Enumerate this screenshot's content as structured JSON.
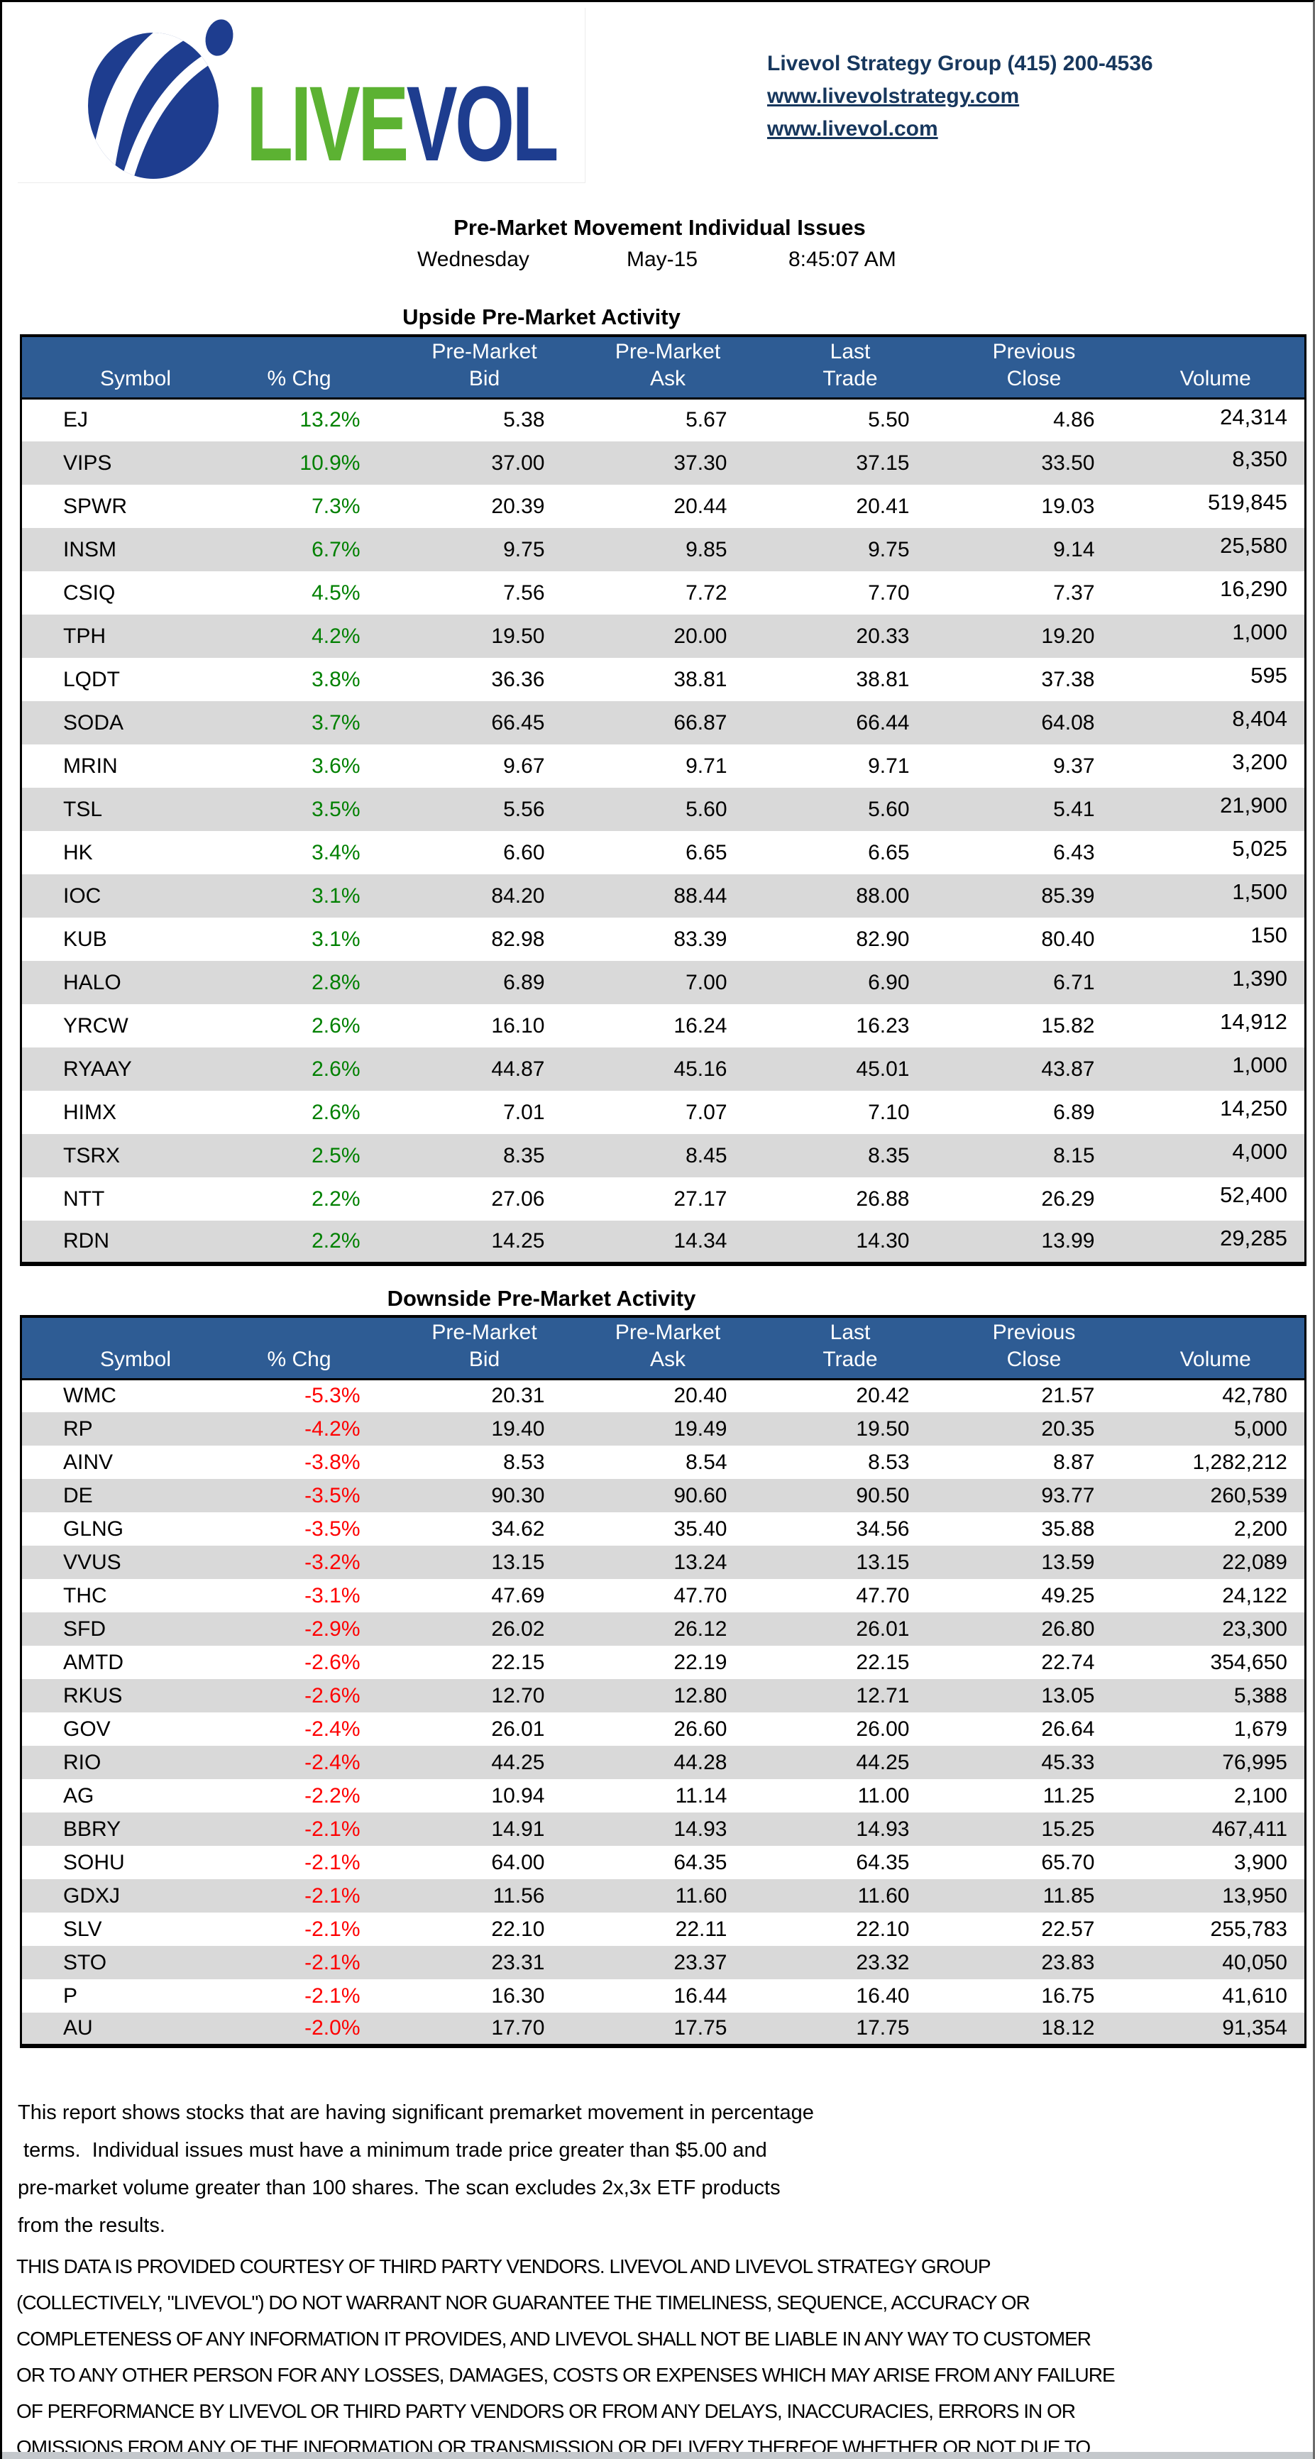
{
  "colors": {
    "header-blue": "#2e5c94",
    "row-alt": "#d9d9d9",
    "up-green": "#008000",
    "down-red": "#fe0000",
    "navy": "#17375d",
    "logo-green": "#5cb232",
    "logo-navy": "#1e3d8f"
  },
  "meta": {
    "col_keys": [
      "symbol",
      "pct-chg",
      "premarket-bid",
      "premarket-ask",
      "last-trade",
      "prev-close",
      "volume"
    ]
  },
  "header": {
    "logo": {
      "live": "LIVE",
      "vol": "VOL"
    },
    "contact": {
      "line1": "Livevol Strategy Group (415) 200-4536",
      "link1": "www.livevolstrategy.com",
      "link2": "www.livevol.com"
    },
    "title": "Pre-Market Movement Individual Issues",
    "weekday": "Wednesday",
    "date": "May-15",
    "time": "8:45:07 AM"
  },
  "table_columns": [
    {
      "top": "",
      "bottom": "Symbol"
    },
    {
      "top": "",
      "bottom": "% Chg"
    },
    {
      "top": "Pre-Market",
      "bottom": "Bid"
    },
    {
      "top": "Pre-Market",
      "bottom": "Ask"
    },
    {
      "top": "Last",
      "bottom": "Trade"
    },
    {
      "top": "Previous",
      "bottom": "Close"
    },
    {
      "top": "",
      "bottom": "Volume"
    }
  ],
  "upside": {
    "heading": "Upside Pre-Market Activity",
    "rows": [
      [
        "EJ",
        "13.2%",
        "5.38",
        "5.67",
        "5.50",
        "4.86",
        "24,314"
      ],
      [
        "VIPS",
        "10.9%",
        "37.00",
        "37.30",
        "37.15",
        "33.50",
        "8,350"
      ],
      [
        "SPWR",
        "7.3%",
        "20.39",
        "20.44",
        "20.41",
        "19.03",
        "519,845"
      ],
      [
        "INSM",
        "6.7%",
        "9.75",
        "9.85",
        "9.75",
        "9.14",
        "25,580"
      ],
      [
        "CSIQ",
        "4.5%",
        "7.56",
        "7.72",
        "7.70",
        "7.37",
        "16,290"
      ],
      [
        "TPH",
        "4.2%",
        "19.50",
        "20.00",
        "20.33",
        "19.20",
        "1,000"
      ],
      [
        "LQDT",
        "3.8%",
        "36.36",
        "38.81",
        "38.81",
        "37.38",
        "595"
      ],
      [
        "SODA",
        "3.7%",
        "66.45",
        "66.87",
        "66.44",
        "64.08",
        "8,404"
      ],
      [
        "MRIN",
        "3.6%",
        "9.67",
        "9.71",
        "9.71",
        "9.37",
        "3,200"
      ],
      [
        "TSL",
        "3.5%",
        "5.56",
        "5.60",
        "5.60",
        "5.41",
        "21,900"
      ],
      [
        "HK",
        "3.4%",
        "6.60",
        "6.65",
        "6.65",
        "6.43",
        "5,025"
      ],
      [
        "IOC",
        "3.1%",
        "84.20",
        "88.44",
        "88.00",
        "85.39",
        "1,500"
      ],
      [
        "KUB",
        "3.1%",
        "82.98",
        "83.39",
        "82.90",
        "80.40",
        "150"
      ],
      [
        "HALO",
        "2.8%",
        "6.89",
        "7.00",
        "6.90",
        "6.71",
        "1,390"
      ],
      [
        "YRCW",
        "2.6%",
        "16.10",
        "16.24",
        "16.23",
        "15.82",
        "14,912"
      ],
      [
        "RYAAY",
        "2.6%",
        "44.87",
        "45.16",
        "45.01",
        "43.87",
        "1,000"
      ],
      [
        "HIMX",
        "2.6%",
        "7.01",
        "7.07",
        "7.10",
        "6.89",
        "14,250"
      ],
      [
        "TSRX",
        "2.5%",
        "8.35",
        "8.45",
        "8.35",
        "8.15",
        "4,000"
      ],
      [
        "NTT",
        "2.2%",
        "27.06",
        "27.17",
        "26.88",
        "26.29",
        "52,400"
      ],
      [
        "RDN",
        "2.2%",
        "14.25",
        "14.34",
        "14.30",
        "13.99",
        "29,285"
      ]
    ]
  },
  "downside": {
    "heading": "Downside Pre-Market Activity",
    "rows": [
      [
        "WMC",
        "-5.3%",
        "20.31",
        "20.40",
        "20.42",
        "21.57",
        "42,780"
      ],
      [
        "RP",
        "-4.2%",
        "19.40",
        "19.49",
        "19.50",
        "20.35",
        "5,000"
      ],
      [
        "AINV",
        "-3.8%",
        "8.53",
        "8.54",
        "8.53",
        "8.87",
        "1,282,212"
      ],
      [
        "DE",
        "-3.5%",
        "90.30",
        "90.60",
        "90.50",
        "93.77",
        "260,539"
      ],
      [
        "GLNG",
        "-3.5%",
        "34.62",
        "35.40",
        "34.56",
        "35.88",
        "2,200"
      ],
      [
        "VVUS",
        "-3.2%",
        "13.15",
        "13.24",
        "13.15",
        "13.59",
        "22,089"
      ],
      [
        "THC",
        "-3.1%",
        "47.69",
        "47.70",
        "47.70",
        "49.25",
        "24,122"
      ],
      [
        "SFD",
        "-2.9%",
        "26.02",
        "26.12",
        "26.01",
        "26.80",
        "23,300"
      ],
      [
        "AMTD",
        "-2.6%",
        "22.15",
        "22.19",
        "22.15",
        "22.74",
        "354,650"
      ],
      [
        "RKUS",
        "-2.6%",
        "12.70",
        "12.80",
        "12.71",
        "13.05",
        "5,388"
      ],
      [
        "GOV",
        "-2.4%",
        "26.01",
        "26.60",
        "26.00",
        "26.64",
        "1,679"
      ],
      [
        "RIO",
        "-2.4%",
        "44.25",
        "44.28",
        "44.25",
        "45.33",
        "76,995"
      ],
      [
        "AG",
        "-2.2%",
        "10.94",
        "11.14",
        "11.00",
        "11.25",
        "2,100"
      ],
      [
        "BBRY",
        "-2.1%",
        "14.91",
        "14.93",
        "14.93",
        "15.25",
        "467,411"
      ],
      [
        "SOHU",
        "-2.1%",
        "64.00",
        "64.35",
        "64.35",
        "65.70",
        "3,900"
      ],
      [
        "GDXJ",
        "-2.1%",
        "11.56",
        "11.60",
        "11.60",
        "11.85",
        "13,950"
      ],
      [
        "SLV",
        "-2.1%",
        "22.10",
        "22.11",
        "22.10",
        "22.57",
        "255,783"
      ],
      [
        "STO",
        "-2.1%",
        "23.31",
        "23.37",
        "23.32",
        "23.83",
        "40,050"
      ],
      [
        "P",
        "-2.1%",
        "16.30",
        "16.44",
        "16.40",
        "16.75",
        "41,610"
      ],
      [
        "AU",
        "-2.0%",
        "17.70",
        "17.75",
        "17.75",
        "18.12",
        "91,354"
      ]
    ]
  },
  "note": {
    "lines": [
      "This report shows stocks that are having significant premarket movement in percentage",
      " terms.  Individual issues must have a minimum trade price greater than $5.00 and",
      "pre-market volume greater than 100 shares. The scan excludes 2x,3x ETF products",
      "from the results."
    ]
  },
  "disclaimer": {
    "lines": [
      "THIS DATA IS PROVIDED COURTESY OF THIRD PARTY VENDORS. LIVEVOL AND LIVEVOL STRATEGY GROUP",
      "(COLLECTIVELY, \"LIVEVOL\") DO NOT WARRANT NOR GUARANTEE THE TIMELINESS, SEQUENCE, ACCURACY OR",
      "COMPLETENESS OF ANY INFORMATION IT PROVIDES, AND LIVEVOL SHALL NOT BE LIABLE IN ANY WAY TO CUSTOMER",
      "OR TO ANY OTHER PERSON FOR ANY LOSSES, DAMAGES, COSTS OR EXPENSES WHICH MAY ARISE FROM ANY FAILURE",
      "OF PERFORMANCE BY LIVEVOL OR THIRD PARTY VENDORS OR FROM ANY DELAYS, INACCURACIES, ERRORS IN OR",
      "OMISSIONS FROM ANY OF THE INFORMATION OR TRANSMISSION OR DELIVERY THEREOF WHETHER OR NOT DUE TO"
    ]
  }
}
